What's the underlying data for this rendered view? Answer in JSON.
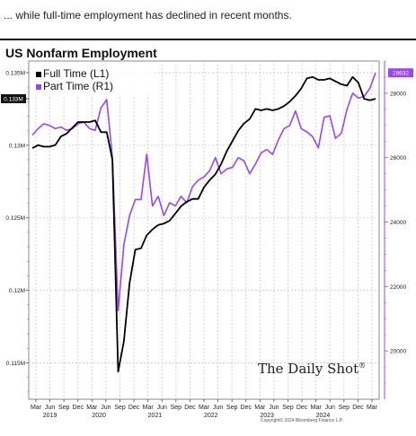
{
  "caption": "... while full-time employment has declined in recent months.",
  "watermark": "The Daily Shot",
  "watermark_mark": "®",
  "copyright": "Copyright© 2024 Bloomberg Finance L.P.",
  "colors": {
    "full_time": "#000000",
    "part_time": "#9b45f0",
    "grid": "#c9c9c9"
  },
  "chart_data": {
    "type": "line",
    "title": "US Nonfarm Employment",
    "legend": [
      "Full Time (L1)",
      "Part Time (R1)"
    ],
    "legend_position": "top-left",
    "grid": true,
    "x_month_labels": [
      "Mar",
      "Jun",
      "Sep",
      "Dec",
      "Mar",
      "Jun",
      "Sep",
      "Dec",
      "Mar",
      "Jun",
      "Sep",
      "Dec",
      "Mar",
      "Jun",
      "Sep",
      "Dec",
      "Mar",
      "Jun",
      "Sep",
      "Dec",
      "Mar",
      "Jun",
      "Sep",
      "Dec",
      "Mar"
    ],
    "x_year_labels": [
      "2019",
      "2020",
      "2021",
      "2022",
      "2023",
      "2024"
    ],
    "y_left": {
      "ticks": [
        "0.115M",
        "0.12M",
        "0.125M",
        "0.13M",
        "0.135M"
      ],
      "tick_values": [
        115,
        120,
        125,
        130,
        135
      ],
      "range": [
        112.5,
        135.8
      ]
    },
    "y_right": {
      "ticks": [
        "20000",
        "22000",
        "24000",
        "26000",
        "28000"
      ],
      "tick_values": [
        20000,
        22000,
        24000,
        26000,
        28000
      ],
      "range": [
        18500,
        29000
      ]
    },
    "series": [
      {
        "name": "Full Time (L1)",
        "last_value_label": "0.133M",
        "values": [
          129.8,
          130.0,
          129.9,
          129.9,
          130.0,
          130.6,
          130.8,
          131.2,
          131.6,
          131.6,
          131.6,
          131.7,
          130.9,
          130.9,
          129.0,
          114.4,
          116.5,
          120.5,
          122.8,
          122.9,
          123.8,
          124.2,
          124.5,
          124.6,
          124.8,
          125.3,
          125.8,
          126.1,
          126.3,
          126.3,
          127.1,
          127.6,
          128.0,
          128.7,
          129.6,
          130.3,
          131.0,
          131.5,
          131.8,
          132.5,
          132.4,
          132.5,
          132.4,
          132.5,
          132.7,
          133.0,
          133.4,
          133.9,
          134.6,
          134.7,
          134.5,
          134.5,
          134.6,
          134.4,
          134.2,
          134.1,
          134.7,
          134.3,
          133.2,
          133.1,
          133.2
        ]
      },
      {
        "name": "Part Time (R1)",
        "last_value_label": "28632",
        "values": [
          26700,
          26900,
          27050,
          27000,
          26900,
          26950,
          26850,
          26900,
          27050,
          27100,
          26900,
          26850,
          27550,
          27800,
          26000,
          21250,
          23300,
          24200,
          24700,
          24700,
          26100,
          24500,
          24800,
          24200,
          24600,
          24500,
          24800,
          24600,
          25100,
          25300,
          25400,
          25600,
          26000,
          25500,
          25650,
          25700,
          26000,
          25900,
          25500,
          25800,
          26150,
          26250,
          26100,
          26550,
          26900,
          27000,
          27450,
          26900,
          26800,
          26650,
          26300,
          27250,
          27300,
          26600,
          26750,
          27500,
          28000,
          27850,
          27900,
          28150,
          28632
        ]
      }
    ]
  }
}
